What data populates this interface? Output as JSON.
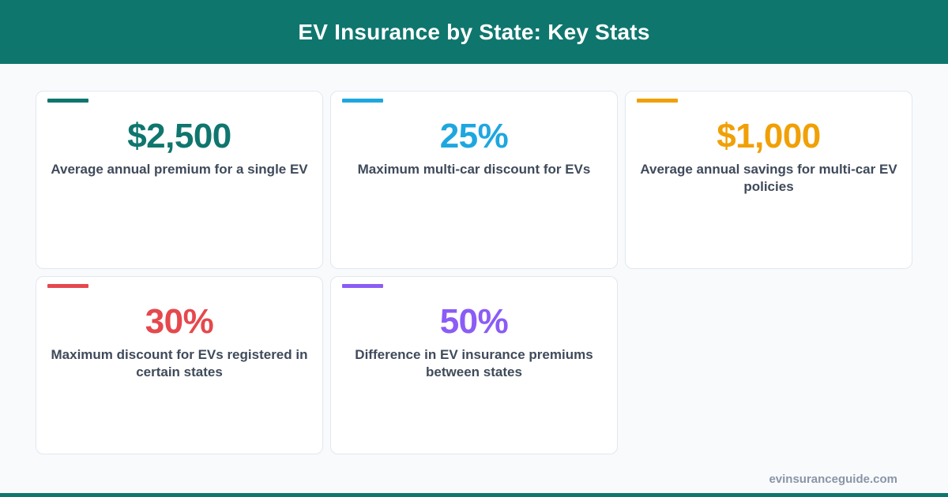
{
  "header": {
    "title": "EV Insurance by State: Key Stats",
    "background": "#0f766e"
  },
  "stats": [
    {
      "value": "$2,500",
      "label": "Average annual premium for a single EV",
      "color": "#0f766e"
    },
    {
      "value": "25%",
      "label": "Maximum multi-car discount for EVs",
      "color": "#1ea7df"
    },
    {
      "value": "$1,000",
      "label": "Average annual savings for multi-car EV policies",
      "color": "#f0a007"
    },
    {
      "value": "30%",
      "label": "Maximum discount for EVs registered in certain states",
      "color": "#e5484d"
    },
    {
      "value": "50%",
      "label": "Difference in EV insurance premiums between states",
      "color": "#8b5cf6"
    }
  ],
  "footer": {
    "url": "evinsuranceguide.com"
  }
}
